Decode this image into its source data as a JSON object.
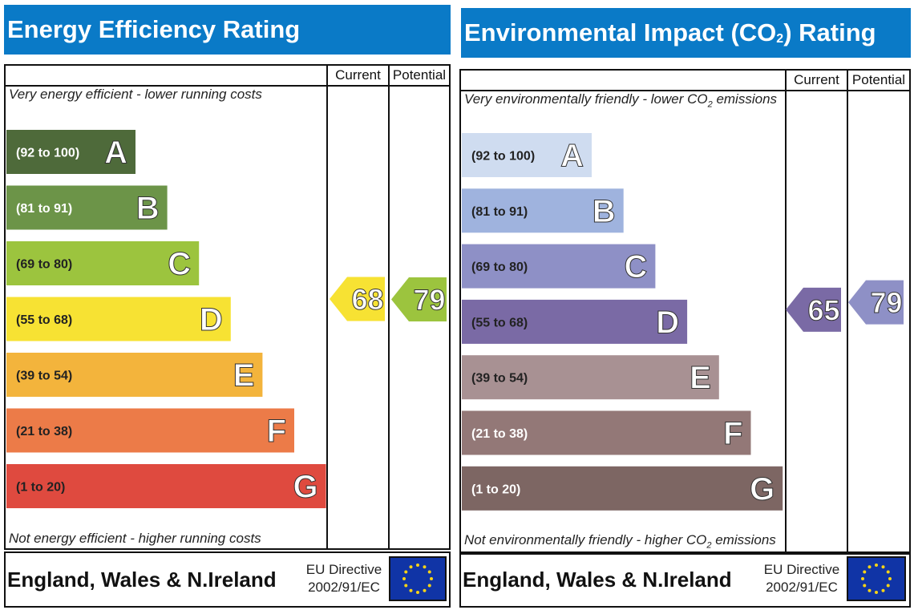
{
  "chart_data": [
    {
      "type": "bar",
      "title": "Energy Efficiency Rating",
      "column_headers": [
        "Current",
        "Potential"
      ],
      "top_caption": "Very energy efficient - lower running costs",
      "bottom_caption": "Not energy efficient - higher running costs",
      "bands": [
        {
          "range": "(92 to 100)",
          "letter": "A",
          "color": "#4e6a3a",
          "text_color": "#ffffff"
        },
        {
          "range": "(81 to 91)",
          "letter": "B",
          "color": "#6c9448",
          "text_color": "#ffffff"
        },
        {
          "range": "(69 to 80)",
          "letter": "C",
          "color": "#9cc43e",
          "text_color": "#222222"
        },
        {
          "range": "(55 to 68)",
          "letter": "D",
          "color": "#f7e233",
          "text_color": "#222222"
        },
        {
          "range": "(39 to 54)",
          "letter": "E",
          "color": "#f3b43c",
          "text_color": "#222222"
        },
        {
          "range": "(21 to 38)",
          "letter": "F",
          "color": "#ec7b48",
          "text_color": "#222222"
        },
        {
          "range": "(1 to 20)",
          "letter": "G",
          "color": "#df4a3f",
          "text_color": "#222222"
        }
      ],
      "current": {
        "value": "68",
        "band": "D",
        "color": "#f7e233"
      },
      "potential": {
        "value": "79",
        "band": "C",
        "color": "#9cc43e"
      },
      "footer": {
        "region": "England, Wales & N.Ireland",
        "directive_line1": "EU Directive",
        "directive_line2": "2002/91/EC"
      }
    },
    {
      "type": "bar",
      "title": "Environmental Impact (CO",
      "title_sub": "2",
      "title_end": ") Rating",
      "column_headers": [
        "Current",
        "Potential"
      ],
      "top_caption": "Very environmentally friendly - lower CO",
      "top_caption_sub": "2",
      "top_caption_end": " emissions",
      "bottom_caption": "Not environmentally friendly - higher CO",
      "bottom_caption_sub": "2",
      "bottom_caption_end": " emissions",
      "bands": [
        {
          "range": "(92 to 100)",
          "letter": "A",
          "color": "#cfdcf0",
          "text_color": "#222222"
        },
        {
          "range": "(81 to 91)",
          "letter": "B",
          "color": "#9fb3de",
          "text_color": "#222222"
        },
        {
          "range": "(69 to 80)",
          "letter": "C",
          "color": "#8e90c6",
          "text_color": "#222222"
        },
        {
          "range": "(55 to 68)",
          "letter": "D",
          "color": "#7a6aa5",
          "text_color": "#222222"
        },
        {
          "range": "(39 to 54)",
          "letter": "E",
          "color": "#a89193",
          "text_color": "#222222"
        },
        {
          "range": "(21 to 38)",
          "letter": "F",
          "color": "#937877",
          "text_color": "#ffffff"
        },
        {
          "range": "(1 to 20)",
          "letter": "G",
          "color": "#7d6663",
          "text_color": "#ffffff"
        }
      ],
      "current": {
        "value": "65",
        "band": "D",
        "color": "#7a6aa5"
      },
      "potential": {
        "value": "79",
        "band": "C",
        "color": "#8e90c6"
      },
      "footer": {
        "region": "England, Wales & N.Ireland",
        "directive_line1": "EU Directive",
        "directive_line2": "2002/91/EC"
      }
    }
  ]
}
